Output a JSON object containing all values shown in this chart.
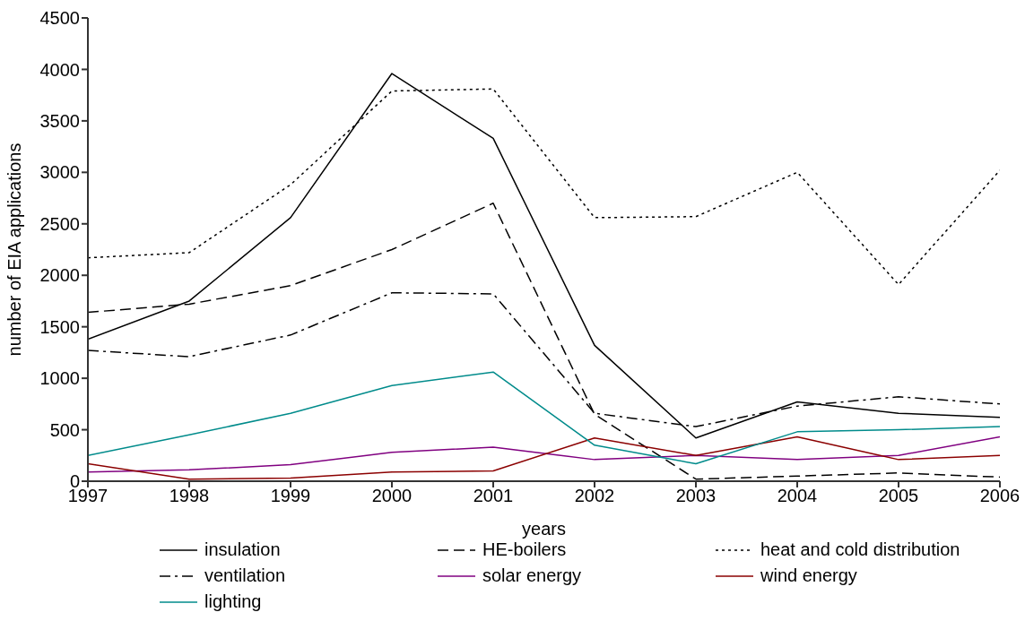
{
  "chart_data": {
    "type": "line",
    "xlabel": "years",
    "ylabel": "number of EIA applications",
    "x": [
      1997,
      1998,
      1999,
      2000,
      2001,
      2002,
      2003,
      2004,
      2005,
      2006
    ],
    "xlim": [
      1997,
      2006
    ],
    "xticks": [
      1997,
      1998,
      1999,
      2000,
      2001,
      2002,
      2003,
      2004,
      2005,
      2006
    ],
    "ylim": [
      0,
      4500
    ],
    "yticks": [
      0,
      500,
      1000,
      1500,
      2000,
      2500,
      3000,
      3500,
      4000,
      4500
    ],
    "grid": false,
    "legend": "bottom",
    "marker": "none",
    "series": [
      {
        "name": "insulation",
        "color": "#000000",
        "line_style": "solid",
        "values": [
          1380,
          1750,
          2560,
          3960,
          3330,
          1320,
          420,
          770,
          660,
          620
        ]
      },
      {
        "name": "HE-boilers",
        "color": "#000000",
        "line_style": "dashed",
        "values": [
          1640,
          1720,
          1900,
          2250,
          2700,
          650,
          20,
          50,
          80,
          40
        ]
      },
      {
        "name": "heat and cold distribution",
        "color": "#000000",
        "line_style": "dotted",
        "values": [
          2170,
          2220,
          2880,
          3790,
          3810,
          2560,
          2570,
          3000,
          1910,
          3020
        ]
      },
      {
        "name": "ventilation",
        "color": "#000000",
        "line_style": "dashdot",
        "values": [
          1270,
          1210,
          1420,
          1830,
          1820,
          660,
          530,
          730,
          820,
          750
        ]
      },
      {
        "name": "solar energy",
        "color": "#800080",
        "line_style": "solid",
        "values": [
          90,
          110,
          160,
          280,
          330,
          210,
          250,
          210,
          250,
          430
        ]
      },
      {
        "name": "wind energy",
        "color": "#8b0000",
        "line_style": "solid",
        "values": [
          170,
          20,
          30,
          90,
          100,
          420,
          250,
          430,
          210,
          250
        ]
      },
      {
        "name": "lighting",
        "color": "#008b8b",
        "line_style": "solid",
        "values": [
          250,
          450,
          660,
          930,
          1060,
          350,
          170,
          480,
          500,
          530
        ]
      }
    ]
  }
}
